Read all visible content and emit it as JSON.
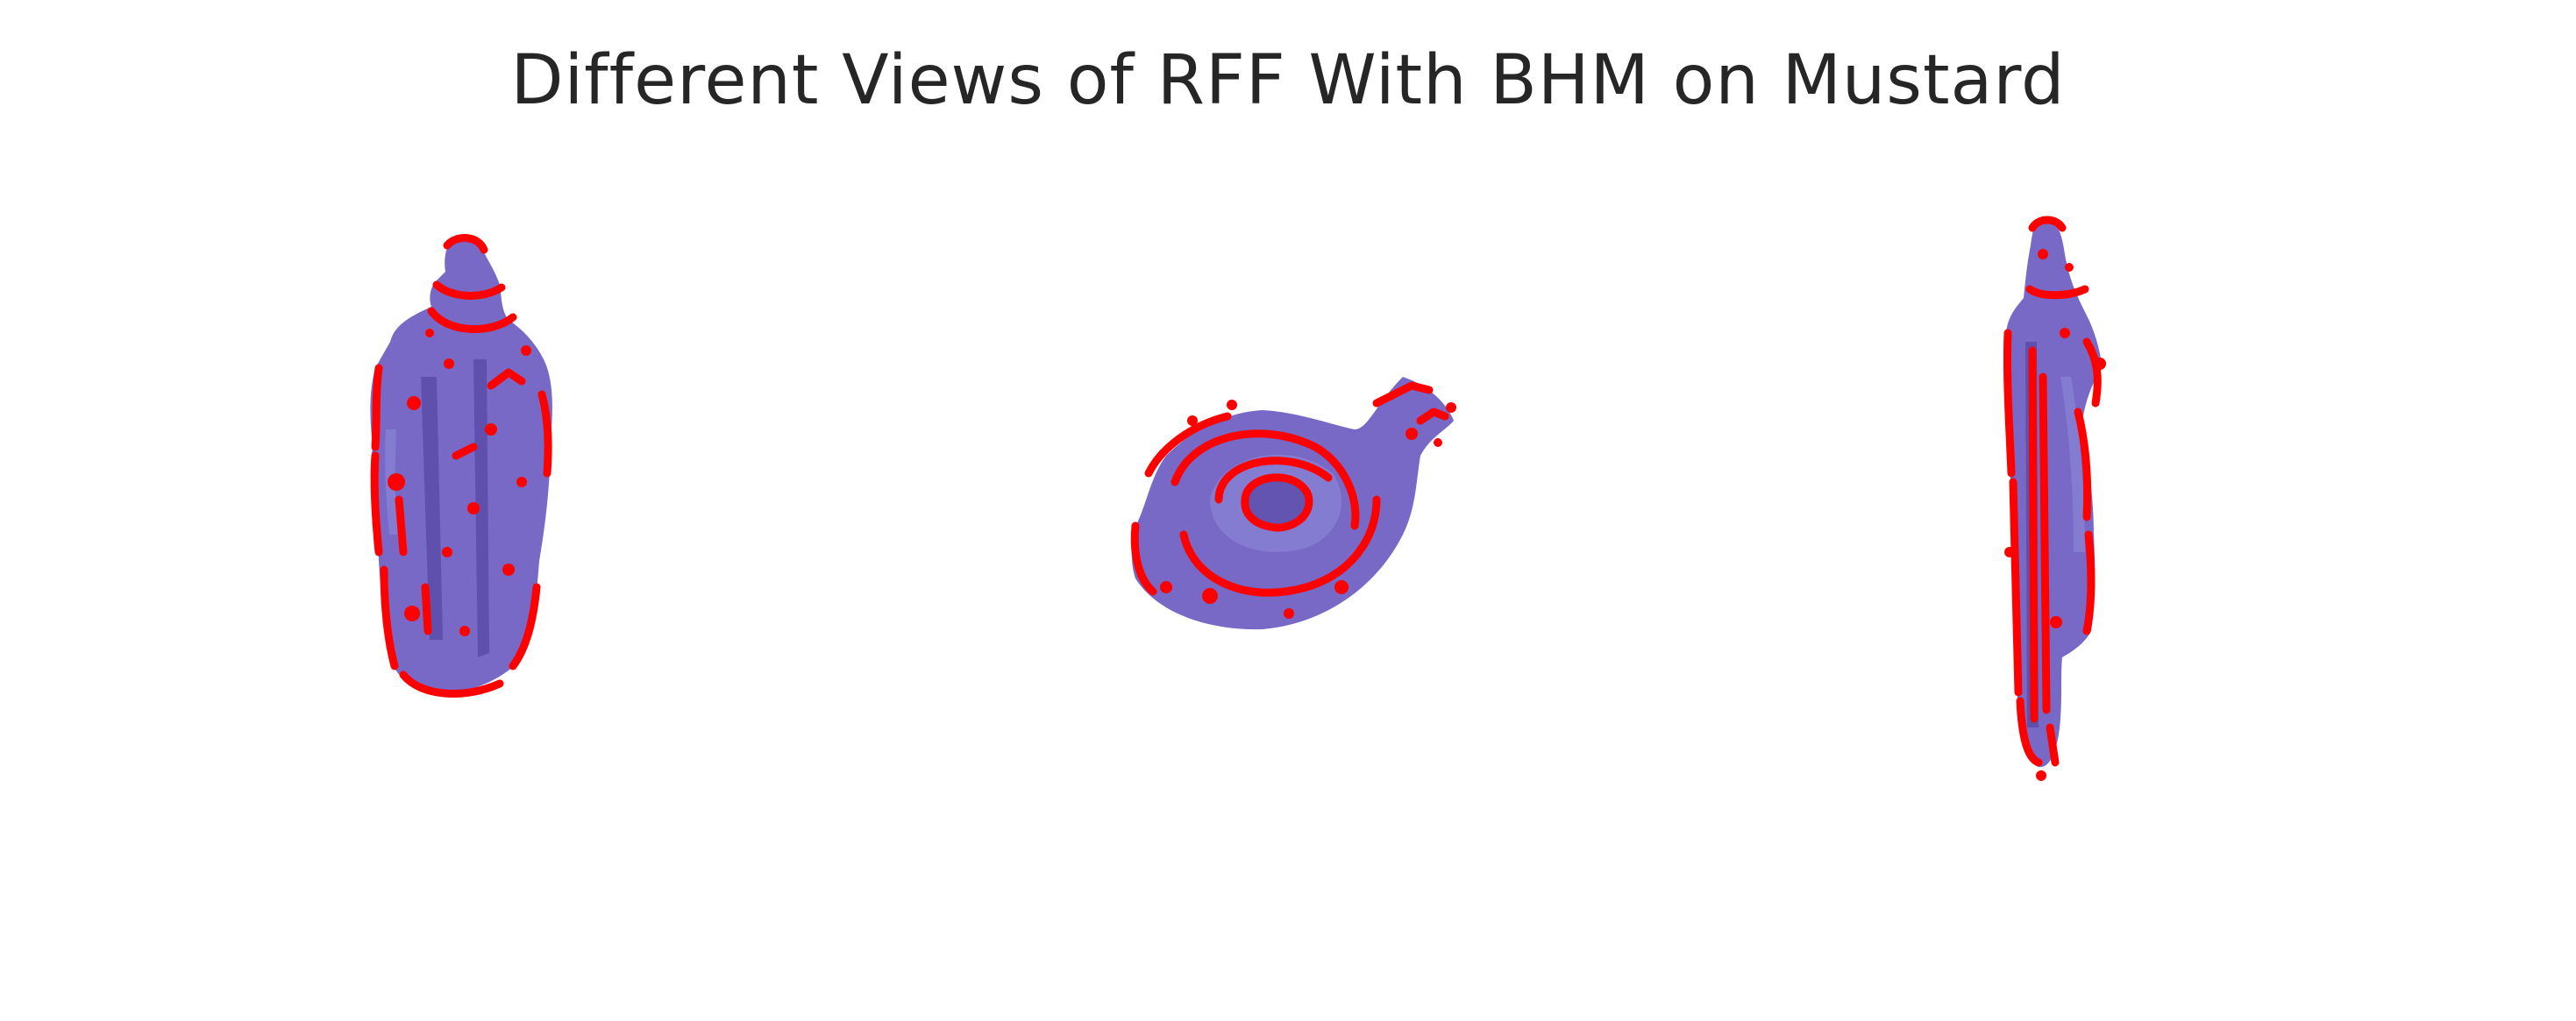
{
  "figure": {
    "title": "Different Views of RFF With BHM on Mustard"
  },
  "colors": {
    "surface": "#6b5cc0",
    "surface_light": "#8a84d6",
    "surface_dark": "#5a4aa8",
    "points": "#ff0000",
    "background": "#ffffff",
    "title": "#262626"
  },
  "views": [
    {
      "id": "front",
      "icon": "mustard-bottle-front-view"
    },
    {
      "id": "top",
      "icon": "mustard-bottle-top-view"
    },
    {
      "id": "side",
      "icon": "mustard-bottle-side-view"
    }
  ]
}
